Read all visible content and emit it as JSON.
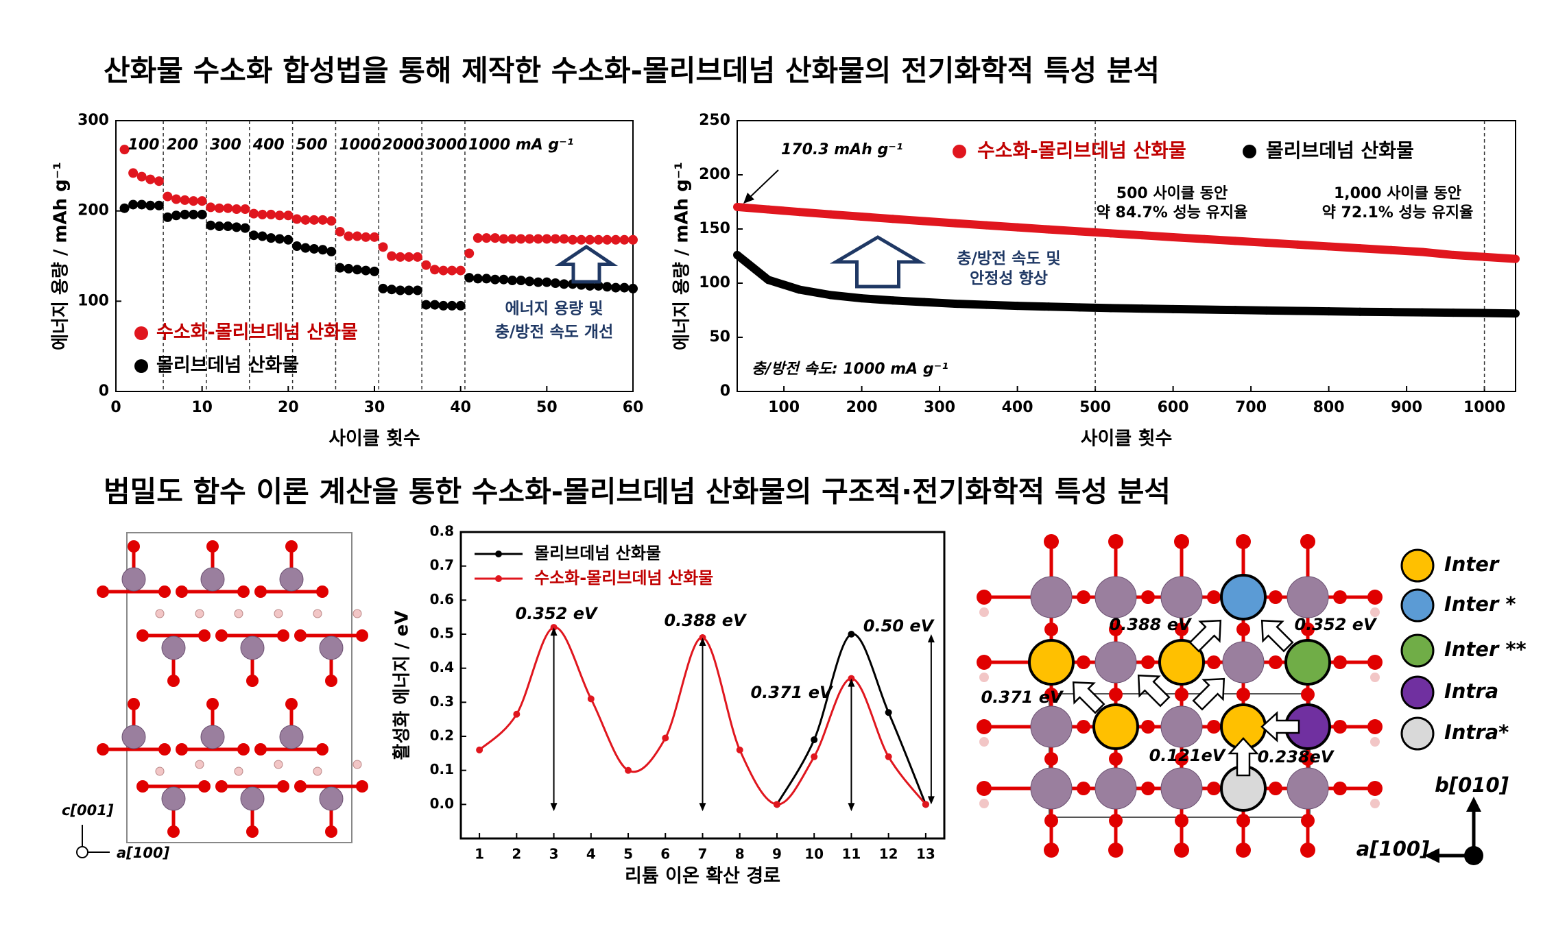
{
  "titles": [
    "산화물 수소화 합성법을 통해 제작한 수소화-몰리브데넘 산화물의 전기화학적 특성 분석",
    "범밀도 함수 이론 계산을 통한 수소화-몰리브데넘 산화물의 구조적·전기화학적 특성 분석"
  ],
  "chart_data": [
    {
      "type": "scatter",
      "xlabel": "사이클 횟수",
      "ylabel": "에너지 용량 / mAh g⁻¹",
      "x": [
        1,
        2,
        3,
        4,
        5,
        6,
        7,
        8,
        9,
        10,
        11,
        12,
        13,
        14,
        15,
        16,
        17,
        18,
        19,
        20,
        21,
        22,
        23,
        24,
        25,
        26,
        27,
        28,
        29,
        30,
        31,
        32,
        33,
        34,
        35,
        36,
        37,
        38,
        39,
        40,
        41,
        42,
        43,
        44,
        45,
        46,
        47,
        48,
        49,
        50,
        51,
        52,
        53,
        54,
        55,
        56,
        57,
        58,
        59,
        60
      ],
      "series": [
        {
          "name": "수소화-몰리브데넘 산화물",
          "color": "#e0161e",
          "values": [
            268,
            242,
            238,
            235,
            233,
            216,
            213,
            212,
            211,
            211,
            204,
            203,
            203,
            202,
            202,
            197,
            196,
            196,
            195,
            195,
            191,
            190,
            190,
            190,
            189,
            177,
            172,
            172,
            171,
            171,
            160,
            150,
            149,
            149,
            149,
            140,
            135,
            134,
            134,
            134,
            153,
            170,
            170,
            170,
            169,
            169,
            169,
            169,
            169,
            169,
            169,
            169,
            168,
            168,
            168,
            168,
            168,
            168,
            168,
            168
          ]
        },
        {
          "name": "몰리브데넘 산화물",
          "color": "#000000",
          "values": [
            203,
            207,
            207,
            206,
            206,
            193,
            195,
            196,
            196,
            196,
            184,
            183,
            183,
            182,
            181,
            173,
            172,
            170,
            169,
            168,
            161,
            159,
            158,
            157,
            155,
            137,
            136,
            135,
            134,
            133,
            114,
            113,
            112,
            112,
            112,
            96,
            96,
            95,
            95,
            95,
            126,
            125,
            125,
            124,
            124,
            123,
            123,
            122,
            121,
            121,
            120,
            119,
            119,
            118,
            117,
            117,
            116,
            115,
            115,
            114
          ]
        }
      ],
      "xlim": [
        0,
        60
      ],
      "xticks": [
        0,
        10,
        20,
        30,
        40,
        50,
        60
      ],
      "ylim": [
        0,
        300
      ],
      "yticks": [
        0,
        100,
        200,
        300
      ],
      "dividers": [
        5.5,
        10.5,
        15.5,
        20.5,
        25.5,
        30.5,
        35.5,
        40.5
      ],
      "rate_labels": [
        "100",
        "200",
        "300",
        "400",
        "500",
        "1000",
        "2000",
        "3000",
        "1000 mA g⁻¹"
      ],
      "annotation": [
        "에너지 용량 및",
        "충/방전 속도 개선"
      ]
    },
    {
      "type": "scatter",
      "xlabel": "사이클 횟수",
      "ylabel": "에너지 용량 / mAh g⁻¹",
      "x": [
        40,
        80,
        120,
        160,
        200,
        240,
        280,
        320,
        360,
        400,
        440,
        480,
        520,
        560,
        600,
        640,
        680,
        720,
        760,
        800,
        840,
        880,
        920,
        960,
        1000,
        1040
      ],
      "series": [
        {
          "name": "수소화-몰리브데넘 산화물",
          "color": "#e0161e",
          "values": [
            170.3,
            168.0,
            165.7,
            163.5,
            161.4,
            159.3,
            157.3,
            155.3,
            153.4,
            151.5,
            149.6,
            147.8,
            146.0,
            144.2,
            142.4,
            140.7,
            139.0,
            137.3,
            135.6,
            133.9,
            132.2,
            130.5,
            128.8,
            126.0,
            124.2,
            122.4
          ]
        },
        {
          "name": "몰리브데넘 산화물",
          "color": "#000000",
          "values": [
            126,
            103,
            94,
            89,
            86,
            84,
            82.5,
            81,
            80,
            79,
            78.3,
            77.6,
            77,
            76.5,
            76,
            75.6,
            75.2,
            74.8,
            74.4,
            74,
            73.6,
            73.3,
            73,
            72.7,
            72.4,
            72
          ]
        }
      ],
      "xlim": [
        40,
        1040
      ],
      "xticks": [
        100,
        200,
        300,
        400,
        500,
        600,
        700,
        800,
        900,
        1000
      ],
      "ylim": [
        0,
        250
      ],
      "yticks": [
        0,
        50,
        100,
        150,
        200,
        250
      ],
      "dividers": [
        500,
        1000
      ],
      "annotations": {
        "first_value": "170.3 mAh g⁻¹",
        "retention_500": [
          "500 사이클 동안",
          "약 84.7% 성능 유지율"
        ],
        "retention_1000": [
          "1,000 사이클 동안",
          "약 72.1% 성능 유지율"
        ],
        "improvement": [
          "충/방전 속도 및",
          "안정성 향상"
        ],
        "rate": "충/방전 속도: 1000 mA g⁻¹"
      }
    },
    {
      "type": "line",
      "xlabel": "리튬 이온 확산 경로",
      "ylabel": "활성화 에너지 / eV",
      "x": [
        1,
        2,
        3,
        4,
        5,
        6,
        7,
        8,
        9,
        10,
        11,
        12,
        13
      ],
      "series": [
        {
          "name": "몰리브데넘 산화물",
          "color": "#000000",
          "values": [
            null,
            null,
            null,
            null,
            null,
            null,
            null,
            null,
            0.0,
            0.19,
            0.5,
            0.27,
            0.0
          ]
        },
        {
          "name": "수소화-몰리브데넘 산화물",
          "color": "#e0161e",
          "values": [
            0.16,
            0.265,
            0.52,
            0.31,
            0.1,
            0.195,
            0.49,
            0.16,
            0.0,
            0.14,
            0.37,
            0.14,
            0.0
          ]
        }
      ],
      "xlim": [
        0.5,
        13.5
      ],
      "xticks": [
        1,
        2,
        3,
        4,
        5,
        6,
        7,
        8,
        9,
        10,
        11,
        12,
        13
      ],
      "ylim": [
        -0.1,
        0.8
      ],
      "yticks": [
        {
          "value": 0,
          "label": "0.0"
        },
        0.1,
        0.2,
        0.3,
        0.4,
        0.5,
        0.6,
        0.7,
        0.8
      ],
      "annotations": [
        "0.352 eV",
        "0.388 eV",
        "0.371 eV",
        "0.50 eV"
      ]
    }
  ],
  "structure_left": {
    "axis_labels": [
      "c[001]",
      "a[100]"
    ]
  },
  "structure_right": {
    "energy_labels": [
      "0.388 eV",
      "0.352 eV",
      "0.371 eV",
      "0.121eV",
      "0.238eV"
    ],
    "axis_labels": [
      "b[010]",
      "a[100]"
    ],
    "legend": [
      {
        "name": "Inter",
        "color": "#ffc000"
      },
      {
        "name": "Inter *",
        "color": "#5b9bd5"
      },
      {
        "name": "Inter **",
        "color": "#70ad47"
      },
      {
        "name": "Intra",
        "color": "#7030a0"
      },
      {
        "name": "Intra*",
        "color": "#d9d9d9"
      }
    ]
  }
}
